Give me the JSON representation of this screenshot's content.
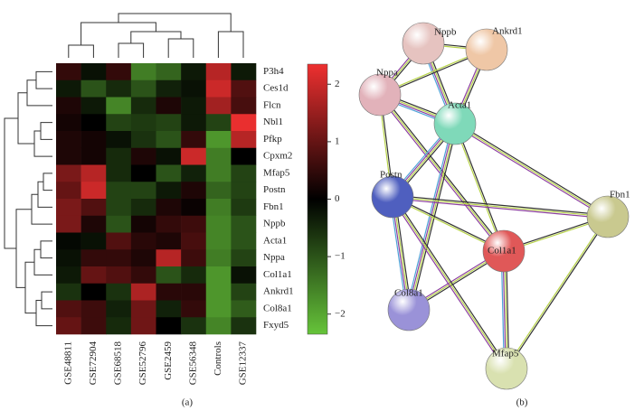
{
  "chart_data": {
    "type": "heatmap",
    "columns": [
      "GSE48811",
      "GSE72904",
      "GSE68518",
      "GSE52796",
      "GSE2459",
      "GSE56348",
      "Controls",
      "GSE12337"
    ],
    "rows": [
      "P3h4",
      "Ces1d",
      "Flcn",
      "Nbl1",
      "Pfkp",
      "Cpxm2",
      "Mfap5",
      "Postn",
      "Fbn1",
      "Nppb",
      "Acta1",
      "Nppa",
      "Col1a1",
      "Ankrd1",
      "Col8a1",
      "Fxyd5"
    ],
    "values": [
      [
        0.5,
        -0.2,
        0.5,
        -1.5,
        -1.2,
        -0.3,
        1.8,
        -0.3
      ],
      [
        -0.3,
        -1,
        -0.5,
        -1,
        -0.4,
        -0.2,
        2,
        0.8
      ],
      [
        0.3,
        -0.3,
        -1.6,
        -0.5,
        0.3,
        -0.3,
        1.6,
        0.7
      ],
      [
        0.2,
        0,
        -0.8,
        -0.7,
        -0.8,
        -0.3,
        -0.8,
        2.3
      ],
      [
        0.3,
        0.2,
        -0.2,
        -0.6,
        -1,
        0.5,
        -1.8,
        1.8
      ],
      [
        0.3,
        0.2,
        -0.5,
        0.3,
        -0.2,
        2,
        -1.5,
        0
      ],
      [
        1.2,
        1.8,
        -0.5,
        0,
        -1,
        -0.4,
        -1.5,
        -0.8
      ],
      [
        1,
        2,
        -0.8,
        -0.8,
        -0.3,
        0.3,
        -1.2,
        -0.8
      ],
      [
        1.2,
        0.8,
        -0.8,
        -0.5,
        0.3,
        0.1,
        -1.5,
        -0.7
      ],
      [
        1.2,
        0.3,
        -1,
        0.2,
        0.5,
        0.6,
        -1.6,
        -1
      ],
      [
        -0.1,
        -0.2,
        0.8,
        0.4,
        0.3,
        0.7,
        -1.6,
        -1
      ],
      [
        -0.2,
        0.5,
        0.5,
        0.3,
        1.8,
        0.6,
        -1.5,
        -0.8
      ],
      [
        -0.3,
        1,
        0.8,
        0.5,
        -1,
        -0.5,
        -1.8,
        -0.2
      ],
      [
        -0.6,
        0,
        -0.6,
        1.7,
        0.4,
        0.4,
        -1.8,
        -0.8
      ],
      [
        0.8,
        0.6,
        -0.4,
        1.1,
        -0.4,
        0.5,
        -1.8,
        -1.1
      ],
      [
        1,
        0.6,
        -0.5,
        1.1,
        0,
        -0.6,
        -1.6,
        -0.6
      ]
    ],
    "colormap": [
      "#66c43a",
      "#000000",
      "#ee3030"
    ],
    "zlim": [
      -2.35,
      2.35
    ],
    "zticks": [
      {
        "value": -2,
        "label": "−2"
      },
      {
        "value": -1,
        "label": "−1"
      },
      0,
      1,
      2
    ],
    "caption": "(a)"
  },
  "network": {
    "caption": "(b)",
    "nodes": [
      {
        "label": "Nppb",
        "color": "#e6c3c0"
      },
      {
        "label": "Ankrd1",
        "color": "#efc7a6"
      },
      {
        "label": "Nppa",
        "color": "#e2b2ba"
      },
      {
        "label": "Acta1",
        "color": "#7fd9b9"
      },
      {
        "label": "Postn",
        "color": "#4f5fbf"
      },
      {
        "label": "Fbn1",
        "color": "#c9c98f"
      },
      {
        "label": "Col1a1",
        "color": "#e05858"
      },
      {
        "label": "Col8a1",
        "color": "#9a92d8"
      },
      {
        "label": "Mfap5",
        "color": "#d9e1b0"
      }
    ]
  }
}
